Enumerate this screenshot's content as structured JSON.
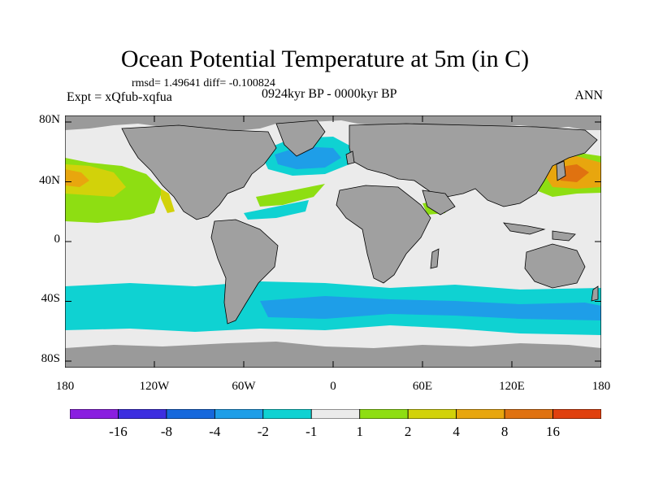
{
  "title": "Ocean Potential Temperature at 5m (in C)",
  "stats": "rmsd= 1.49641 diff= -0.100824",
  "experiment": "Expt = xQfub-xqfua",
  "period": "0924kyr BP - 0000kyr BP",
  "season": "ANN",
  "y_axis": {
    "labels": [
      "80N",
      "40N",
      "0",
      "40S",
      "80S"
    ],
    "values": [
      80,
      40,
      0,
      -40,
      -80
    ]
  },
  "x_axis": {
    "labels": [
      "180",
      "120W",
      "60W",
      "0",
      "60E",
      "120E",
      "180"
    ],
    "values": [
      -180,
      -120,
      -60,
      0,
      60,
      120,
      180
    ]
  },
  "colorbar": {
    "colors": [
      "#8a1ee0",
      "#3d2ee0",
      "#1668dc",
      "#1e9ee8",
      "#0fd2d2",
      "#ebebeb",
      "#8ede12",
      "#d2d20a",
      "#e8a60e",
      "#e07210",
      "#e0400e"
    ],
    "labels": [
      "-16",
      "-8",
      "-4",
      "-2",
      "-1",
      "1",
      "2",
      "4",
      "8",
      "16"
    ],
    "boundaries": [
      -16,
      -8,
      -4,
      -2,
      -1,
      1,
      2,
      4,
      8,
      16
    ]
  },
  "land_color": "#a0a0a0",
  "sea_ice_color": "#9a9a9a",
  "neutral_color": "#ebebeb"
}
